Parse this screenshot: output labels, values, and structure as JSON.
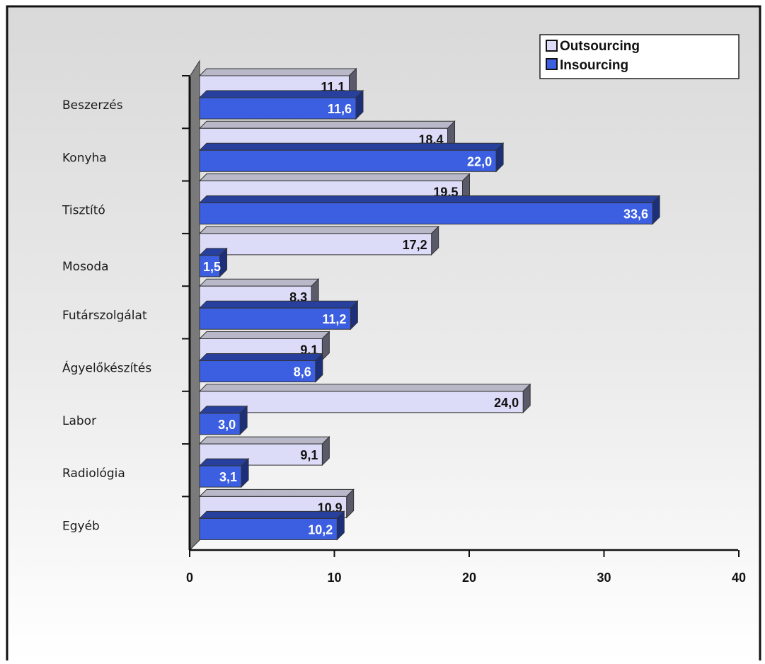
{
  "chart_data": {
    "type": "bar",
    "orientation": "horizontal",
    "categories": [
      "Beszerzés",
      "Konyha",
      "Tisztító",
      "Mosoda",
      "Futárszolgálat",
      "Ágyelőkészítés",
      "Labor",
      "Radiológia",
      "Egyéb"
    ],
    "series": [
      {
        "name": "Outsourcing",
        "color": "#dcdcf8",
        "values": [
          11.1,
          18.4,
          19.5,
          17.2,
          8.3,
          9.1,
          24.0,
          9.1,
          10.9
        ],
        "labels": [
          "11,1",
          "18,4",
          "19,5",
          "17,2",
          "8,3",
          "9,1",
          "24,0",
          "9,1",
          "10,9"
        ]
      },
      {
        "name": "Insourcing",
        "color": "#3b5fe0",
        "values": [
          11.6,
          22.0,
          33.6,
          1.5,
          11.2,
          8.6,
          3.0,
          3.1,
          10.2
        ],
        "labels": [
          "11,6",
          "22,0",
          "33,6",
          "1,5",
          "11,2",
          "8,6",
          "3,0",
          "3,1",
          "10,2"
        ]
      }
    ],
    "xlim": [
      0,
      40
    ],
    "xticks": [
      0,
      10,
      20,
      30,
      40
    ],
    "xtick_labels": [
      "0",
      "10",
      "20",
      "30",
      "40"
    ],
    "title": "",
    "xlabel": "",
    "ylabel": "",
    "legend_position": "top-right",
    "grid": false
  }
}
